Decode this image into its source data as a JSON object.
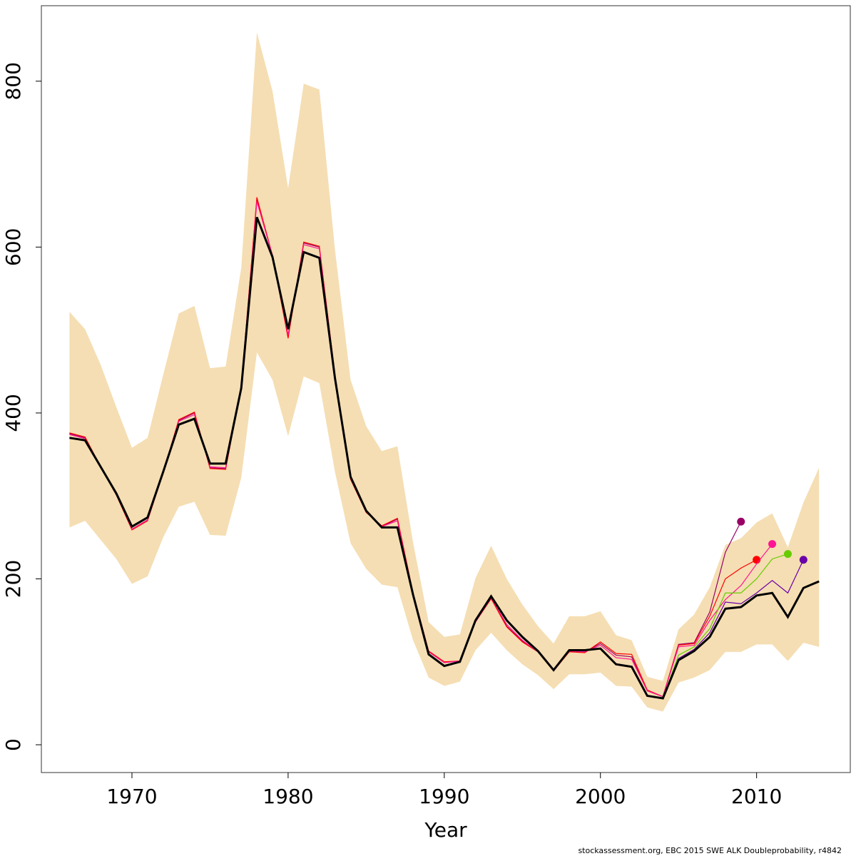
{
  "chart_data": {
    "type": "line",
    "x_label": "Year",
    "footer": "stockassessment.org, EBC  2015  SWE  ALK  Doubleprobability, r4842",
    "x": [
      1966,
      1967,
      1968,
      1969,
      1970,
      1971,
      1972,
      1973,
      1974,
      1975,
      1976,
      1977,
      1978,
      1979,
      1980,
      1981,
      1982,
      1983,
      1984,
      1985,
      1986,
      1987,
      1988,
      1989,
      1990,
      1991,
      1992,
      1993,
      1994,
      1995,
      1996,
      1997,
      1998,
      1999,
      2000,
      2001,
      2002,
      2003,
      2004,
      2005,
      2006,
      2007,
      2008,
      2009,
      2010,
      2011,
      2012,
      2013,
      2014
    ],
    "band": {
      "color": "#f5deb3",
      "upper": [
        522,
        501,
        458,
        407,
        358,
        370,
        446,
        520,
        529,
        454,
        456,
        575,
        859,
        788,
        671,
        797,
        790,
        597,
        440,
        384,
        354,
        360,
        244,
        148,
        130,
        133,
        201,
        240,
        200,
        169,
        143,
        122,
        155,
        155,
        161,
        132,
        126,
        82,
        77,
        139,
        157,
        190,
        241,
        249,
        268,
        279,
        238,
        292,
        334
      ],
      "lower": [
        262,
        270,
        247,
        224,
        194,
        203,
        250,
        287,
        293,
        253,
        252,
        322,
        473,
        440,
        372,
        444,
        436,
        329,
        243,
        212,
        193,
        190,
        126,
        81,
        71,
        76,
        114,
        135,
        114,
        97,
        84,
        67,
        85,
        85,
        87,
        71,
        70,
        45,
        40,
        75,
        81,
        90,
        112,
        112,
        121,
        121,
        101,
        123,
        118
      ]
    },
    "series": [
      {
        "color": "#990066",
        "values": [
          375,
          370,
          335,
          302,
          260,
          271,
          329,
          391,
          400,
          334,
          333,
          431,
          658,
          589,
          492,
          605,
          600,
          445,
          321,
          281,
          263,
          272,
          182,
          112,
          99,
          101,
          148,
          177,
          143,
          125,
          112,
          90,
          113,
          112,
          122,
          108,
          106,
          65,
          58,
          121,
          123,
          160,
          232,
          269,
          null,
          null,
          null,
          null,
          null
        ]
      },
      {
        "color": "#ff0000",
        "values": [
          376,
          371,
          335,
          301,
          259,
          270,
          328,
          392,
          401,
          333,
          332,
          432,
          660,
          590,
          490,
          606,
          601,
          446,
          320,
          280,
          264,
          273,
          183,
          113,
          100,
          101,
          148,
          176,
          142,
          124,
          112,
          89,
          112,
          111,
          124,
          110,
          109,
          66,
          58,
          120,
          122,
          155,
          200,
          213,
          223,
          null,
          null,
          null,
          null
        ]
      },
      {
        "color": "#ff1493",
        "values": [
          374,
          369,
          335,
          302,
          260,
          271,
          328,
          390,
          398,
          335,
          334,
          430,
          655,
          590,
          494,
          603,
          598,
          445,
          322,
          281,
          263,
          270,
          182,
          112,
          99,
          101,
          148,
          177,
          145,
          126,
          112,
          90,
          113,
          112,
          120,
          105,
          103,
          65,
          58,
          118,
          120,
          150,
          175,
          192,
          218,
          242,
          null,
          null,
          null
        ]
      },
      {
        "color": "#66cc00",
        "values": [
          370,
          367,
          335,
          303,
          263,
          274,
          329,
          386,
          393,
          339,
          339,
          430,
          636,
          588,
          501,
          594,
          587,
          442,
          323,
          282,
          262,
          262,
          181,
          109,
          95,
          100,
          150,
          179,
          150,
          130,
          113,
          90,
          114,
          114,
          116,
          97,
          94,
          59,
          56,
          108,
          118,
          140,
          183,
          183,
          200,
          224,
          230,
          null,
          null
        ]
      },
      {
        "color": "#6a00a8",
        "values": [
          370,
          367,
          335,
          303,
          263,
          274,
          329,
          386,
          393,
          339,
          339,
          430,
          636,
          588,
          501,
          594,
          587,
          442,
          323,
          282,
          262,
          262,
          181,
          109,
          95,
          100,
          150,
          179,
          150,
          130,
          113,
          90,
          114,
          114,
          116,
          97,
          94,
          59,
          56,
          104,
          115,
          135,
          172,
          170,
          183,
          198,
          183,
          223,
          null
        ]
      },
      {
        "color": "#000000",
        "main": true,
        "values": [
          370,
          367,
          335,
          303,
          263,
          274,
          329,
          386,
          393,
          339,
          339,
          430,
          636,
          588,
          501,
          594,
          587,
          442,
          323,
          282,
          262,
          262,
          181,
          109,
          95,
          100,
          150,
          179,
          150,
          130,
          113,
          90,
          114,
          114,
          116,
          97,
          94,
          59,
          56,
          102,
          113,
          130,
          164,
          166,
          180,
          183,
          154,
          189,
          197
        ]
      }
    ],
    "xlim": [
      1964.2,
      2016
    ],
    "ylim": [
      -33.5,
      891
    ],
    "xticks": [
      1970,
      1980,
      1990,
      2000,
      2010
    ],
    "yticks": [
      0,
      200,
      400,
      600,
      800
    ]
  }
}
